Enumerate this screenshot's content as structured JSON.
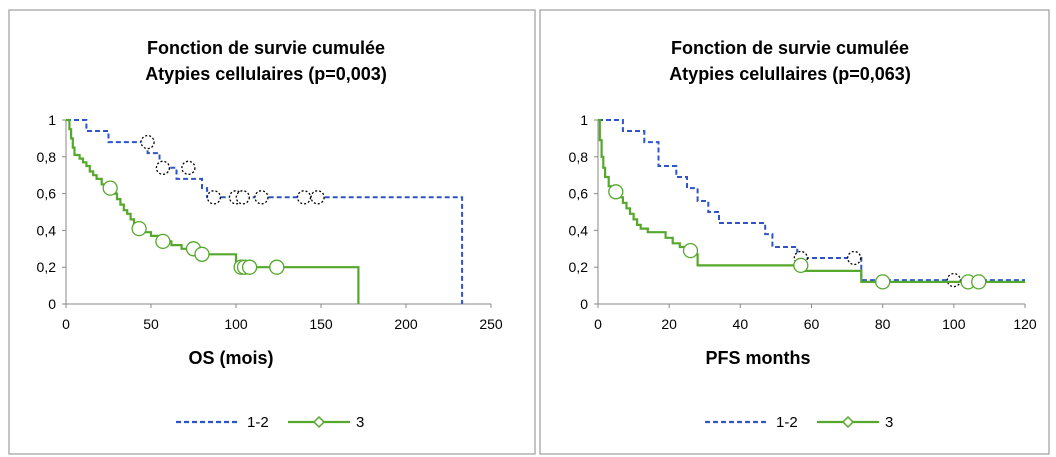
{
  "colors": {
    "group_1_2": "#2e54c8",
    "group_3": "#55a82c",
    "censor_1_2": "#000000"
  },
  "chart_data": [
    {
      "type": "line",
      "title": "Fonction de survie cumulée",
      "subtitle": "Atypies cellulaires (p=0,003)",
      "xlabel": "OS (mois)",
      "ylabel": "",
      "xlim": [
        0,
        250
      ],
      "ylim": [
        0,
        1
      ],
      "x_ticks": [
        0,
        50,
        100,
        150,
        200,
        250
      ],
      "y_ticks": [
        0,
        0.2,
        0.4,
        0.6,
        0.8,
        1
      ],
      "x_tick_labels": [
        "0",
        "50",
        "100",
        "150",
        "200",
        "250"
      ],
      "y_tick_labels": [
        "0",
        "0,2",
        "0,4",
        "0,6",
        "0,8",
        "1"
      ],
      "grid": false,
      "legend_position": "bottom",
      "series": [
        {
          "name": "1-2",
          "style": "dashed",
          "points": [
            [
              0,
              1
            ],
            [
              12,
              1
            ],
            [
              12,
              0.94
            ],
            [
              25,
              0.94
            ],
            [
              25,
              0.88
            ],
            [
              48,
              0.88
            ],
            [
              48,
              0.82
            ],
            [
              55,
              0.82
            ],
            [
              55,
              0.74
            ],
            [
              65,
              0.74
            ],
            [
              65,
              0.68
            ],
            [
              80,
              0.68
            ],
            [
              80,
              0.63
            ],
            [
              83,
              0.63
            ],
            [
              83,
              0.58
            ],
            [
              233,
              0.58
            ],
            [
              233,
              0
            ]
          ],
          "censored": [
            [
              48,
              0.88
            ],
            [
              57,
              0.74
            ],
            [
              72,
              0.74
            ],
            [
              87,
              0.58
            ],
            [
              100,
              0.58
            ],
            [
              104,
              0.58
            ],
            [
              115,
              0.58
            ],
            [
              140,
              0.58
            ],
            [
              148,
              0.58
            ]
          ]
        },
        {
          "name": "3",
          "style": "solid",
          "points": [
            [
              0,
              1
            ],
            [
              2,
              1
            ],
            [
              2,
              0.95
            ],
            [
              3,
              0.95
            ],
            [
              3,
              0.9
            ],
            [
              4,
              0.9
            ],
            [
              4,
              0.85
            ],
            [
              5,
              0.85
            ],
            [
              5,
              0.81
            ],
            [
              8,
              0.81
            ],
            [
              8,
              0.79
            ],
            [
              10,
              0.79
            ],
            [
              10,
              0.77
            ],
            [
              12,
              0.77
            ],
            [
              12,
              0.75
            ],
            [
              14,
              0.75
            ],
            [
              14,
              0.72
            ],
            [
              16,
              0.72
            ],
            [
              16,
              0.7
            ],
            [
              18,
              0.7
            ],
            [
              18,
              0.68
            ],
            [
              21,
              0.68
            ],
            [
              21,
              0.65
            ],
            [
              25,
              0.65
            ],
            [
              25,
              0.63
            ],
            [
              28,
              0.63
            ],
            [
              28,
              0.6
            ],
            [
              30,
              0.6
            ],
            [
              30,
              0.57
            ],
            [
              32,
              0.57
            ],
            [
              32,
              0.54
            ],
            [
              34,
              0.54
            ],
            [
              34,
              0.51
            ],
            [
              36,
              0.51
            ],
            [
              36,
              0.49
            ],
            [
              38,
              0.49
            ],
            [
              38,
              0.46
            ],
            [
              40,
              0.46
            ],
            [
              40,
              0.44
            ],
            [
              43,
              0.44
            ],
            [
              43,
              0.42
            ],
            [
              46,
              0.42
            ],
            [
              46,
              0.39
            ],
            [
              50,
              0.39
            ],
            [
              50,
              0.37
            ],
            [
              54,
              0.37
            ],
            [
              54,
              0.34
            ],
            [
              62,
              0.34
            ],
            [
              62,
              0.32
            ],
            [
              68,
              0.32
            ],
            [
              68,
              0.3
            ],
            [
              75,
              0.3
            ],
            [
              75,
              0.27
            ],
            [
              100,
              0.27
            ],
            [
              100,
              0.23
            ],
            [
              102,
              0.23
            ],
            [
              102,
              0.2
            ],
            [
              172,
              0.2
            ],
            [
              172,
              0
            ]
          ],
          "censored": [
            [
              26,
              0.63
            ],
            [
              43,
              0.41
            ],
            [
              57,
              0.34
            ],
            [
              75,
              0.3
            ],
            [
              80,
              0.27
            ],
            [
              103,
              0.2
            ],
            [
              105,
              0.2
            ],
            [
              108,
              0.2
            ],
            [
              124,
              0.2
            ]
          ]
        }
      ]
    },
    {
      "type": "line",
      "title": "Fonction de survie cumulée",
      "subtitle": "Atypies celullaires (p=0,063)",
      "xlabel": "PFS months",
      "ylabel": "",
      "xlim": [
        0,
        120
      ],
      "ylim": [
        0,
        1
      ],
      "x_ticks": [
        0,
        20,
        40,
        60,
        80,
        100,
        120
      ],
      "y_ticks": [
        0,
        0.2,
        0.4,
        0.6,
        0.8,
        1
      ],
      "x_tick_labels": [
        "0",
        "20",
        "40",
        "60",
        "80",
        "100",
        "120"
      ],
      "y_tick_labels": [
        "0",
        "0,2",
        "0,4",
        "0,6",
        "0,8",
        "1"
      ],
      "grid": false,
      "legend_position": "bottom",
      "series": [
        {
          "name": "1-2",
          "style": "dashed",
          "points": [
            [
              0,
              1
            ],
            [
              7,
              1
            ],
            [
              7,
              0.94
            ],
            [
              13,
              0.94
            ],
            [
              13,
              0.88
            ],
            [
              17,
              0.88
            ],
            [
              17,
              0.75
            ],
            [
              22,
              0.75
            ],
            [
              22,
              0.69
            ],
            [
              25,
              0.69
            ],
            [
              25,
              0.63
            ],
            [
              28,
              0.63
            ],
            [
              28,
              0.56
            ],
            [
              31,
              0.56
            ],
            [
              31,
              0.5
            ],
            [
              34,
              0.5
            ],
            [
              34,
              0.44
            ],
            [
              47,
              0.44
            ],
            [
              47,
              0.38
            ],
            [
              49,
              0.38
            ],
            [
              49,
              0.31
            ],
            [
              56,
              0.31
            ],
            [
              56,
              0.25
            ],
            [
              74,
              0.25
            ],
            [
              74,
              0.13
            ],
            [
              120,
              0.13
            ]
          ],
          "censored": [
            [
              57,
              0.25
            ],
            [
              72,
              0.25
            ],
            [
              100,
              0.13
            ]
          ]
        },
        {
          "name": "3",
          "style": "solid",
          "points": [
            [
              0,
              1
            ],
            [
              0.5,
              1
            ],
            [
              0.5,
              0.89
            ],
            [
              1,
              0.89
            ],
            [
              1,
              0.8
            ],
            [
              1.5,
              0.8
            ],
            [
              1.5,
              0.74
            ],
            [
              2,
              0.74
            ],
            [
              2,
              0.69
            ],
            [
              3,
              0.69
            ],
            [
              3,
              0.64
            ],
            [
              4,
              0.64
            ],
            [
              4,
              0.61
            ],
            [
              6,
              0.61
            ],
            [
              6,
              0.58
            ],
            [
              7,
              0.58
            ],
            [
              7,
              0.55
            ],
            [
              8,
              0.55
            ],
            [
              8,
              0.52
            ],
            [
              9,
              0.52
            ],
            [
              9,
              0.49
            ],
            [
              10,
              0.49
            ],
            [
              10,
              0.46
            ],
            [
              11,
              0.46
            ],
            [
              11,
              0.43
            ],
            [
              12,
              0.43
            ],
            [
              12,
              0.41
            ],
            [
              14,
              0.41
            ],
            [
              14,
              0.39
            ],
            [
              19,
              0.39
            ],
            [
              19,
              0.36
            ],
            [
              21,
              0.36
            ],
            [
              21,
              0.33
            ],
            [
              23,
              0.33
            ],
            [
              23,
              0.31
            ],
            [
              25,
              0.31
            ],
            [
              25,
              0.3
            ],
            [
              26,
              0.3
            ],
            [
              26,
              0.27
            ],
            [
              28,
              0.27
            ],
            [
              28,
              0.21
            ],
            [
              57,
              0.21
            ],
            [
              57,
              0.18
            ],
            [
              74,
              0.18
            ],
            [
              74,
              0.12
            ],
            [
              120,
              0.12
            ]
          ],
          "censored": [
            [
              5,
              0.61
            ],
            [
              26,
              0.29
            ],
            [
              57,
              0.21
            ],
            [
              80,
              0.12
            ],
            [
              104,
              0.12
            ],
            [
              107,
              0.12
            ]
          ]
        }
      ]
    }
  ]
}
